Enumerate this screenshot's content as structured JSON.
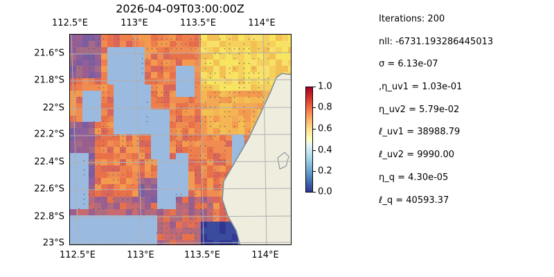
{
  "title": "2026-04-09T03:00:00Z",
  "map": {
    "top_lon_ticks": [
      "112.5°E",
      "113°E",
      "113.5°E",
      "114°E"
    ],
    "bottom_lon_ticks": [
      "112.5°E",
      "113°E",
      "113.5°E",
      "114°E"
    ],
    "lat_ticks": [
      "21.6°S",
      "21.8°S",
      "22°S",
      "22.2°S",
      "22.4°S",
      "22.6°S",
      "22.8°S",
      "23°S"
    ],
    "land_color": "#efedde",
    "ocean_color": "#9bbae0",
    "coast_color": "#7a8a9a",
    "grid_color": "#b0b0b0"
  },
  "colorbar": {
    "ticks": [
      "1.0",
      "0.8",
      "0.6",
      "0.4",
      "0.2",
      "0.0"
    ],
    "colormap": "RdYlBu_r",
    "range": [
      0.0,
      1.0
    ]
  },
  "params": {
    "iterations": "Iterations: 200",
    "nll": "nll: -6731.193286445013",
    "sigma": "σ = 6.13e-07",
    "eta_uv1": ",η_uv1 = 1.03e-01",
    "eta_uv2": "η_uv2 = 5.79e-02",
    "ell_uv1": "ℓ_uv1 = 38988.79",
    "ell_uv2": "ℓ_uv2 = 9990.00",
    "eta_q": "η_q = 4.30e-05",
    "ell_q": "ℓ_q = 40593.37"
  }
}
